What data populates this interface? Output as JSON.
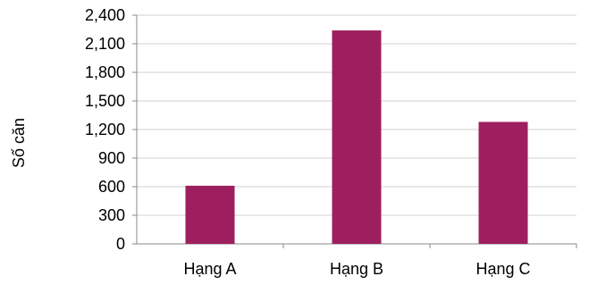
{
  "chart_data": {
    "type": "bar",
    "title": "",
    "xlabel": "",
    "ylabel": "Số căn",
    "categories": [
      "Hạng A",
      "Hạng B",
      "Hạng C"
    ],
    "values": [
      610,
      2240,
      1280
    ],
    "ylim": [
      0,
      2400
    ],
    "yticks": [
      "0",
      "300",
      "600",
      "900",
      "1,200",
      "1,500",
      "1,800",
      "2,100",
      "2,400"
    ],
    "ytick_values": [
      0,
      300,
      600,
      900,
      1200,
      1500,
      1800,
      2100,
      2400
    ],
    "grid": true,
    "legend": "none",
    "bar_color": "#9e1f5f",
    "grid_color": "#d0d0d0"
  }
}
